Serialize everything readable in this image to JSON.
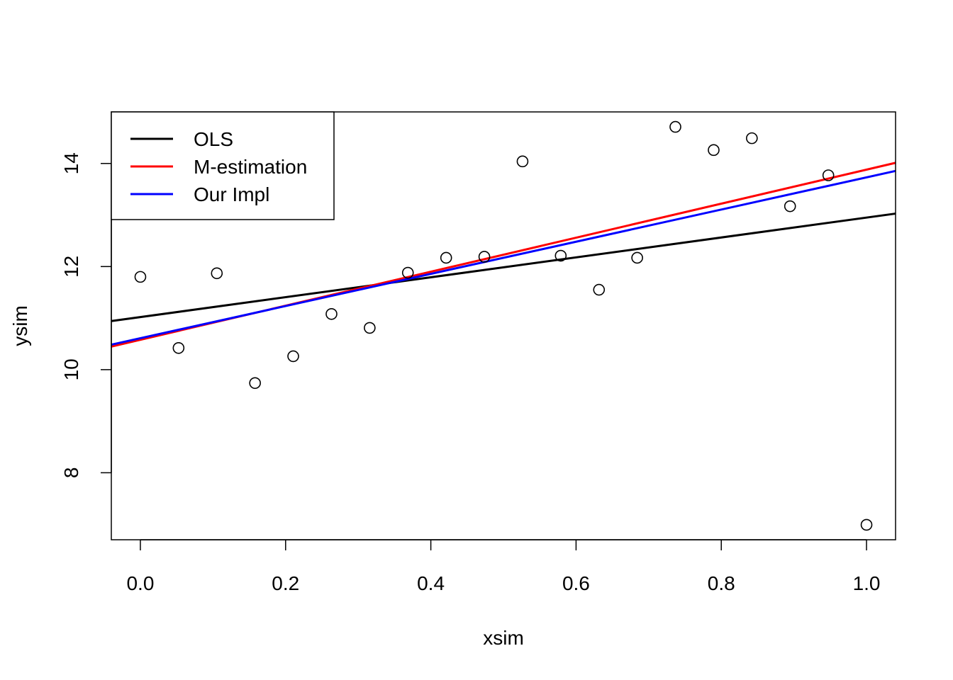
{
  "chart_data": {
    "type": "scatter",
    "xlabel": "xsim",
    "ylabel": "ysim",
    "xlim": [
      -0.04,
      1.04
    ],
    "ylim": [
      6.7,
      15.0
    ],
    "x_ticks": [
      "0.0",
      "0.2",
      "0.4",
      "0.6",
      "0.8",
      "1.0"
    ],
    "x_tick_values": [
      0.0,
      0.2,
      0.4,
      0.6,
      0.8,
      1.0
    ],
    "y_ticks": [
      "8",
      "10",
      "12",
      "14"
    ],
    "y_tick_values": [
      8,
      10,
      12,
      14
    ],
    "grid": false,
    "legend_position": "top-left",
    "points": {
      "x": [
        0.0,
        0.0526,
        0.1053,
        0.1579,
        0.2105,
        0.2632,
        0.3158,
        0.3684,
        0.4211,
        0.4737,
        0.5263,
        0.5789,
        0.6316,
        0.6842,
        0.7368,
        0.7895,
        0.8421,
        0.8947,
        0.9474,
        1.0
      ],
      "y": [
        11.8,
        10.42,
        11.87,
        9.74,
        10.26,
        11.08,
        10.81,
        11.88,
        12.17,
        12.19,
        14.04,
        12.21,
        11.55,
        12.17,
        14.71,
        14.26,
        14.49,
        13.17,
        13.77,
        6.99
      ]
    },
    "series": [
      {
        "name": "OLS",
        "color": "#000000",
        "intercept": 11.02,
        "slope": 1.93
      },
      {
        "name": "M-estimation",
        "color": "#ff0000",
        "intercept": 10.58,
        "slope": 3.3
      },
      {
        "name": "Our Impl",
        "color": "#0000ff",
        "intercept": 10.61,
        "slope": 3.12
      }
    ]
  }
}
